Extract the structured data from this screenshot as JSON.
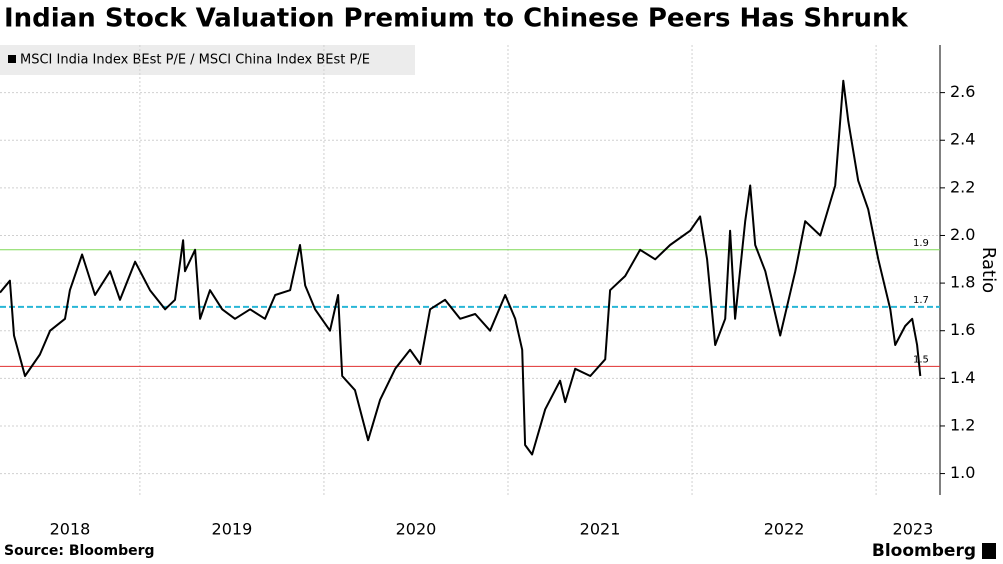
{
  "chart_data": {
    "type": "line",
    "title": "Indian Stock Valuation Premium to Chinese Peers Has Shrunk",
    "y_label": "Ratio",
    "source": "Source: Bloomberg",
    "brand": "Bloomberg",
    "series": [
      {
        "name": "MSCI India Index BEst P/E / MSCI China Index BEst P/E",
        "color": "#000000",
        "x": [
          2018.24,
          2018.294,
          2018.316,
          2018.376,
          2018.457,
          2018.512,
          2018.593,
          2018.62,
          2018.686,
          2018.756,
          2018.838,
          2018.892,
          2018.974,
          2019.055,
          2019.137,
          2019.191,
          2019.235,
          2019.245,
          2019.3,
          2019.327,
          2019.381,
          2019.447,
          2019.517,
          2019.599,
          2019.68,
          2019.735,
          2019.816,
          2019.87,
          2019.898,
          2019.952,
          2020.033,
          2020.077,
          2020.099,
          2020.169,
          2020.24,
          2020.305,
          2020.387,
          2020.468,
          2020.523,
          2020.577,
          2020.658,
          2020.74,
          2020.822,
          2020.903,
          2020.985,
          2021.039,
          2021.077,
          2021.093,
          2021.131,
          2021.202,
          2021.283,
          2021.311,
          2021.365,
          2021.447,
          2021.528,
          2021.555,
          2021.637,
          2021.718,
          2021.8,
          2021.881,
          2021.99,
          2022.044,
          2022.082,
          2022.126,
          2022.18,
          2022.207,
          2022.234,
          2022.289,
          2022.316,
          2022.343,
          2022.398,
          2022.479,
          2022.561,
          2022.615,
          2022.697,
          2022.778,
          2022.822,
          2022.849,
          2022.903,
          2022.957,
          2023.012,
          2023.077,
          2023.104,
          2023.158,
          2023.196,
          2023.223,
          2023.24
        ],
        "values": [
          1.76,
          1.81,
          1.58,
          1.41,
          1.5,
          1.6,
          1.65,
          1.77,
          1.92,
          1.75,
          1.85,
          1.73,
          1.89,
          1.77,
          1.69,
          1.73,
          1.98,
          1.85,
          1.94,
          1.65,
          1.77,
          1.69,
          1.65,
          1.69,
          1.65,
          1.75,
          1.77,
          1.96,
          1.79,
          1.69,
          1.6,
          1.75,
          1.41,
          1.35,
          1.14,
          1.31,
          1.44,
          1.52,
          1.46,
          1.69,
          1.73,
          1.65,
          1.67,
          1.6,
          1.75,
          1.65,
          1.52,
          1.12,
          1.08,
          1.27,
          1.39,
          1.3,
          1.44,
          1.41,
          1.48,
          1.77,
          1.83,
          1.94,
          1.9,
          1.96,
          2.02,
          2.08,
          1.9,
          1.54,
          1.65,
          2.02,
          1.65,
          2.06,
          2.21,
          1.96,
          1.85,
          1.58,
          1.85,
          2.06,
          2.0,
          2.21,
          2.65,
          2.48,
          2.23,
          2.11,
          1.9,
          1.69,
          1.54,
          1.62,
          1.65,
          1.54,
          1.41
        ]
      }
    ],
    "reference_lines": [
      {
        "value": 1.94,
        "label": "1.9",
        "color": "#7ed957",
        "dash": false
      },
      {
        "value": 1.7,
        "label": "1.7",
        "color": "#29b6d6",
        "dash": true
      },
      {
        "value": 1.45,
        "label": "1.5",
        "color": "#e03030",
        "dash": false
      }
    ],
    "xlim": [
      2018.24,
      2023.32
    ],
    "xticks": [
      {
        "value": 2018.62,
        "label": "2018"
      },
      {
        "value": 2019.5,
        "label": "2019"
      },
      {
        "value": 2020.5,
        "label": "2020"
      },
      {
        "value": 2021.5,
        "label": "2021"
      },
      {
        "value": 2022.5,
        "label": "2022"
      },
      {
        "value": 2023.2,
        "label": "2023"
      }
    ],
    "xgrid": [
      2019,
      2020,
      2021,
      2022,
      2023
    ],
    "ylim": [
      0.91,
      2.8
    ],
    "yticks": [
      {
        "value": 1.0,
        "label": "1.0"
      },
      {
        "value": 1.2,
        "label": "1.2"
      },
      {
        "value": 1.4,
        "label": "1.4"
      },
      {
        "value": 1.6,
        "label": "1.6"
      },
      {
        "value": 1.8,
        "label": "1.8"
      },
      {
        "value": 2.0,
        "label": "2.0"
      },
      {
        "value": 2.2,
        "label": "2.2"
      },
      {
        "value": 2.4,
        "label": "2.4"
      },
      {
        "value": 2.6,
        "label": "2.6"
      }
    ],
    "grid": true,
    "legend": "top-left"
  }
}
